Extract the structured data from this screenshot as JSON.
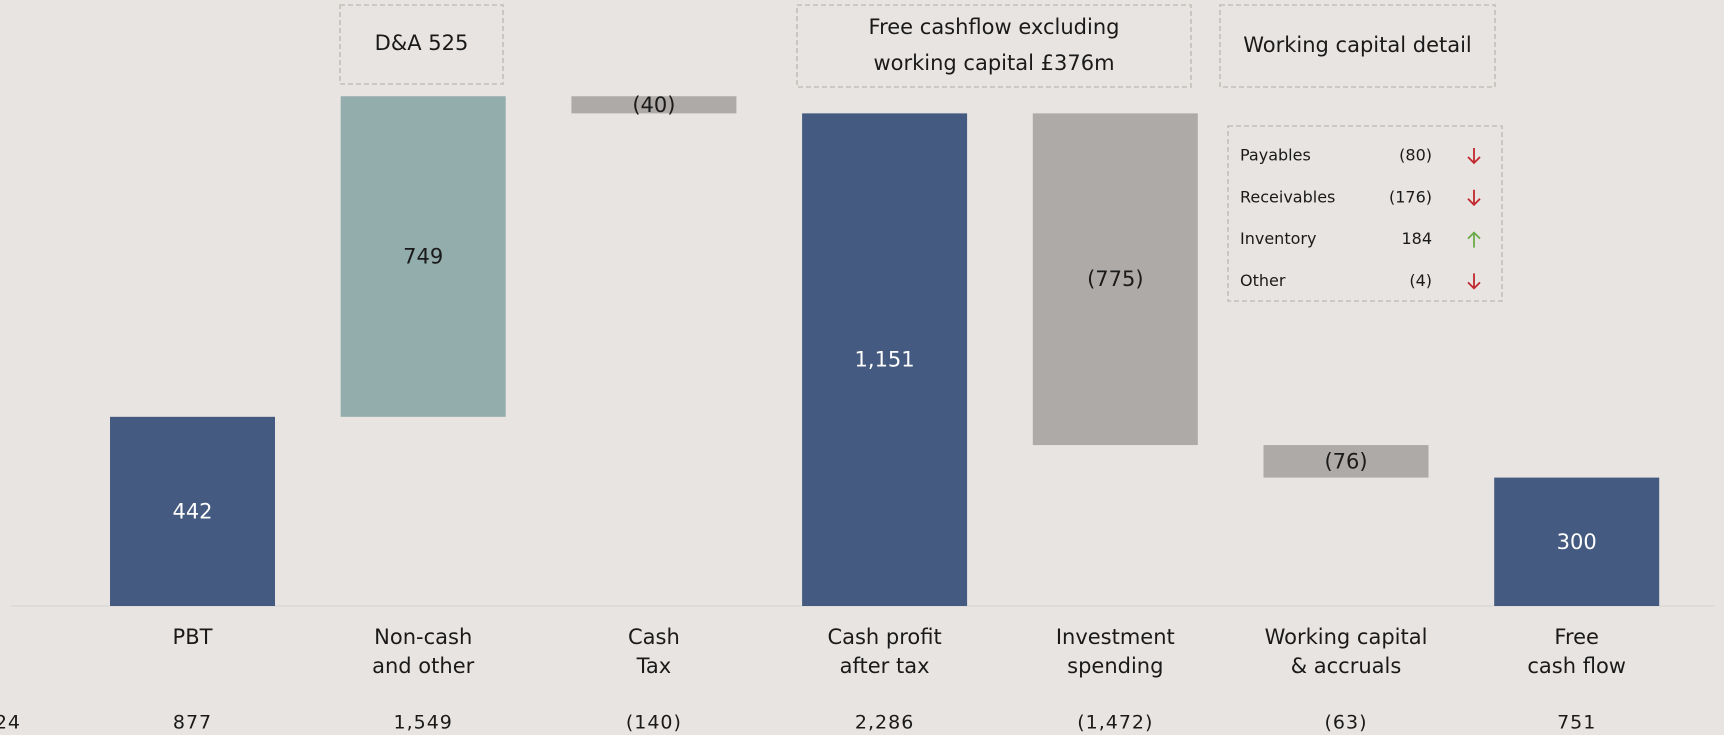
{
  "chart_data": {
    "type": "waterfall",
    "categories": [
      [
        "PBT"
      ],
      [
        "Non-cash",
        "and other"
      ],
      [
        "Cash",
        "Tax"
      ],
      [
        "Cash profit",
        "after tax"
      ],
      [
        "Investment",
        "spending"
      ],
      [
        "Working capital",
        "& accruals"
      ],
      [
        "Free",
        "cash flow"
      ]
    ],
    "values": [
      442,
      749,
      -40,
      1151,
      -775,
      -76,
      300
    ],
    "value_labels": [
      "442",
      "749",
      "(40)",
      "1,151",
      "(775)",
      "(76)",
      "300"
    ],
    "kinds": [
      "total",
      "delta",
      "delta",
      "total",
      "delta",
      "delta",
      "total"
    ],
    "colors": [
      "#445a80",
      "#93adad",
      "#aeaaa8",
      "#445a80",
      "#aeaaa8",
      "#aeaaa8",
      "#445a80"
    ],
    "label_colors": [
      "#ffffff",
      "#1a1a1a",
      "#1a1a1a",
      "#ffffff",
      "#1a1a1a",
      "#1a1a1a",
      "#ffffff"
    ],
    "prior_row": [
      "24",
      "877",
      "1,549",
      "(140)",
      "2,286",
      "(1,472)",
      "(63)",
      "751"
    ],
    "annotations": [
      {
        "lines": [
          "D&A 525"
        ]
      },
      {
        "lines": [
          "Free cashflow excluding",
          "working capital £376m"
        ]
      },
      {
        "lines": [
          "Working  capital detail"
        ]
      }
    ],
    "detail": [
      {
        "name": "Payables",
        "value": "(80)",
        "direction": "down",
        "color": "#c0282d"
      },
      {
        "name": "Receivables",
        "value": "(176)",
        "direction": "down",
        "color": "#c0282d"
      },
      {
        "name": "Inventory",
        "value": "184",
        "direction": "up",
        "color": "#6aaa4a"
      },
      {
        "name": "Other",
        "value": "(4)",
        "direction": "down",
        "color": "#c0282d"
      }
    ]
  }
}
